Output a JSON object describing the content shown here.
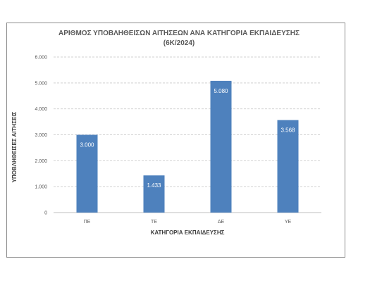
{
  "chart_data": {
    "type": "bar",
    "title": [
      "ΑΡΙΘΜΟΣ ΥΠΟΒΛΗΘΕΙΣΩΝ ΑΙΤΗΣΕΩΝ ΑΝΑ ΚΑΤΗΓΟΡΙΑ ΕΚΠΑΙΔΕΥΣΗΣ",
      "(6Κ/2024)"
    ],
    "categories": [
      "ΠΕ",
      "ΤΕ",
      "ΔΕ",
      "ΥΕ"
    ],
    "values": [
      3000,
      1433,
      5080,
      3568
    ],
    "data_labels": [
      "3.000",
      "1.433",
      "5.080",
      "3.568"
    ],
    "xlabel": "ΚΑΤΗΓΟΡΙΑ ΕΚΠΑΙΔΕΥΣΗΣ",
    "ylabel": "ΥΠΟΒΛΗΘΕΙΣΕΣ ΑΙΤΗΣΕΙΣ",
    "ylim": [
      0,
      6000
    ],
    "yticks": [
      0,
      1000,
      2000,
      3000,
      4000,
      5000,
      6000
    ],
    "ytick_labels": [
      "0",
      "1.000",
      "2.000",
      "3.000",
      "4.000",
      "5.000",
      "6.000"
    ],
    "grid": true,
    "bar_color": "#4e81bd"
  }
}
